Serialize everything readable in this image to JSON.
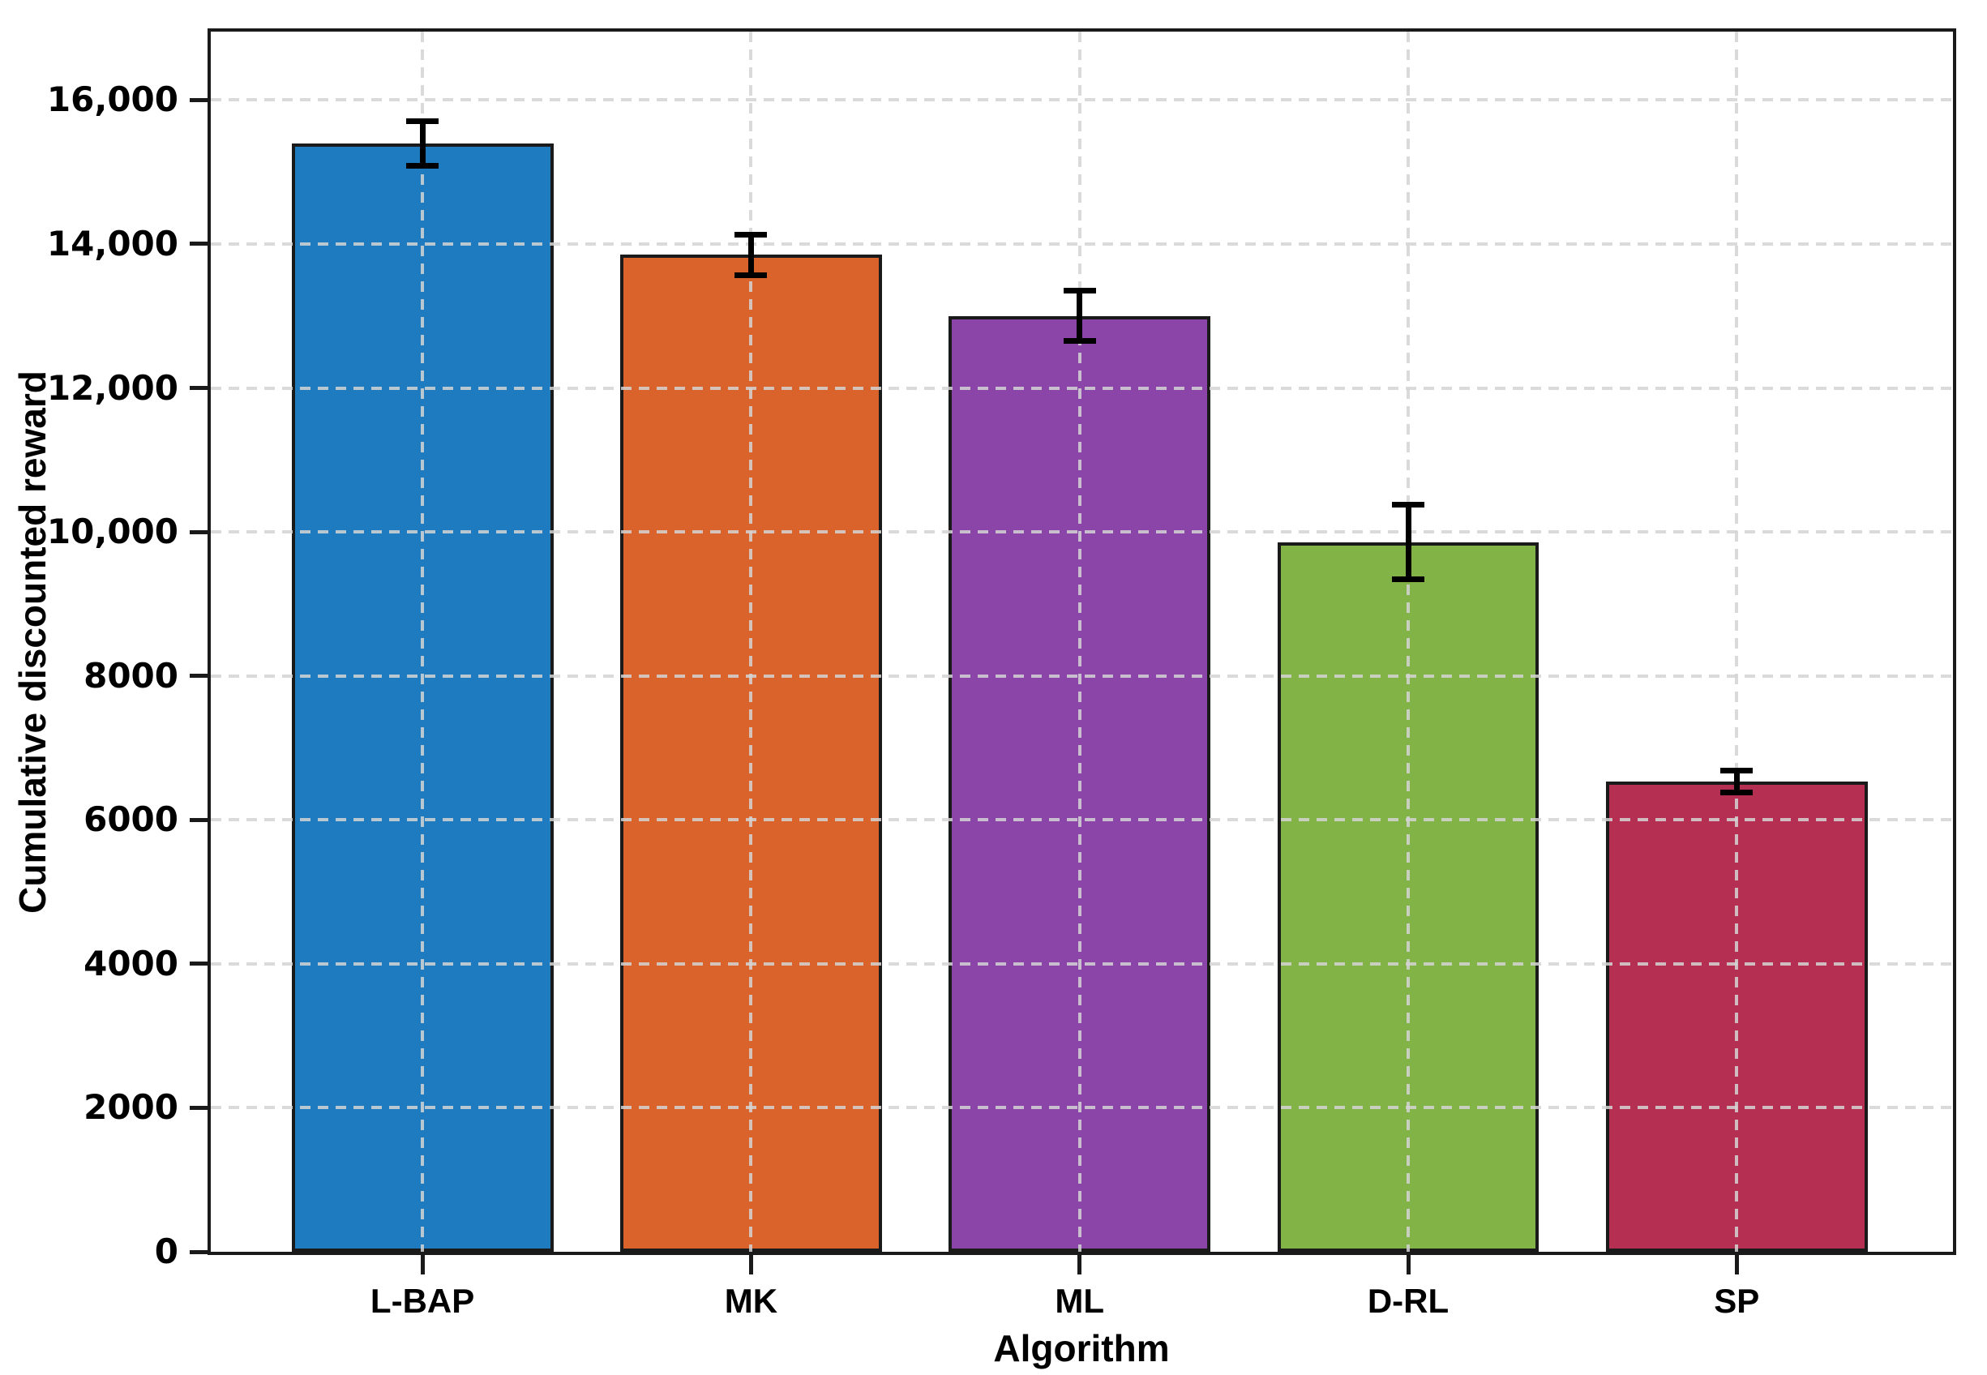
{
  "chart_data": {
    "type": "bar",
    "title": "",
    "xlabel": "Algorithm",
    "ylabel": "Cumulative discounted reward",
    "categories": [
      "L-BAP",
      "MK",
      "ML",
      "D-RL",
      "SP"
    ],
    "values": [
      15400,
      13850,
      13000,
      9860,
      6530
    ],
    "error_bars": [
      310,
      280,
      350,
      520,
      155
    ],
    "bar_colors": [
      "#1f7bc0",
      "#d9632b",
      "#8b44a8",
      "#82b346",
      "#b52f52"
    ],
    "bar_edge_color": "#1a1a1a",
    "errorbar_color": "#000000",
    "ylim": [
      0,
      16950
    ],
    "yticks": [
      0,
      2000,
      4000,
      6000,
      8000,
      10000,
      12000,
      14000,
      16000
    ],
    "ytick_labels": [
      "0",
      "2000",
      "4000",
      "6000",
      "8000",
      "10,000",
      "12,000",
      "14,000",
      "16,000"
    ],
    "grid": "dashed light-gray gridlines, horizontal at y-ticks and vertical at bar centers, drawn above bars",
    "legend": "none",
    "background": "#ffffff"
  }
}
